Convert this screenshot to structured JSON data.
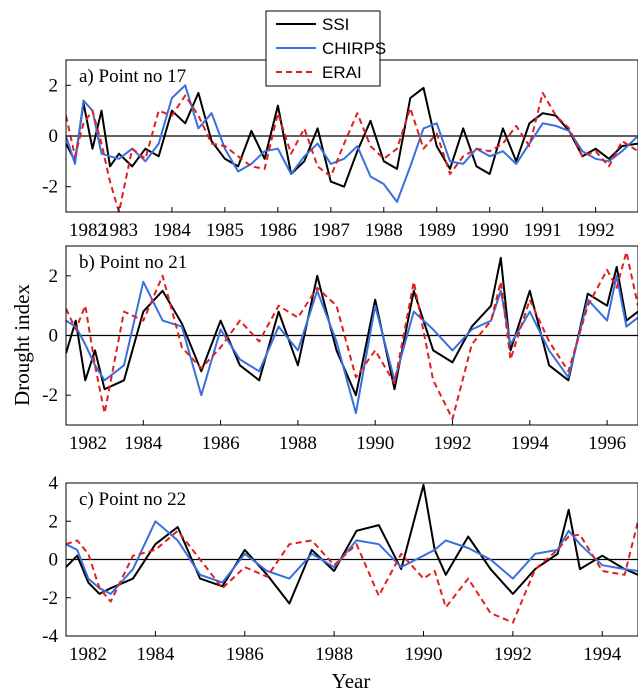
{
  "chart_data": [
    {
      "type": "line",
      "title": "a) Point no 17",
      "xlim": [
        1982,
        1992.8
      ],
      "ylim": [
        -3,
        3
      ],
      "yticks": [
        -2,
        0,
        2
      ],
      "xticks": [
        1982,
        1983,
        1984,
        1985,
        1986,
        1987,
        1988,
        1989,
        1990,
        1991,
        1992
      ],
      "legend": {
        "placement": "top-center",
        "entries": [
          "SSI",
          "CHIRPS",
          "ERAI"
        ]
      },
      "series": [
        {
          "name": "SSI",
          "color": "#000000",
          "style": "solid",
          "x": [
            1982.0,
            1982.17,
            1982.33,
            1982.5,
            1982.67,
            1982.83,
            1983.0,
            1983.25,
            1983.5,
            1983.75,
            1984.0,
            1984.25,
            1984.5,
            1984.75,
            1985.0,
            1985.25,
            1985.5,
            1985.75,
            1986.0,
            1986.25,
            1986.5,
            1986.75,
            1987.0,
            1987.25,
            1987.5,
            1987.75,
            1988.0,
            1988.25,
            1988.5,
            1988.75,
            1989.0,
            1989.25,
            1989.5,
            1989.75,
            1990.0,
            1990.25,
            1990.5,
            1990.75,
            1991.0,
            1991.25,
            1991.5,
            1991.75,
            1992.0,
            1992.25,
            1992.5,
            1992.8
          ],
          "y": [
            -0.3,
            -1.0,
            1.3,
            -0.5,
            1.0,
            -1.2,
            -0.7,
            -1.2,
            -0.5,
            -0.8,
            1.0,
            0.5,
            1.7,
            -0.2,
            -0.9,
            -1.2,
            0.2,
            -0.9,
            1.2,
            -1.5,
            -1.0,
            0.3,
            -1.8,
            -2.0,
            -0.6,
            0.6,
            -1.0,
            -1.3,
            1.5,
            1.9,
            -0.4,
            -1.3,
            0.3,
            -1.2,
            -1.5,
            0.3,
            -1.0,
            0.5,
            0.9,
            0.8,
            0.2,
            -0.8,
            -0.5,
            -0.9,
            -0.4,
            -0.3
          ]
        },
        {
          "name": "CHIRPS",
          "color": "#3a6fe0",
          "style": "solid",
          "x": [
            1982.0,
            1982.17,
            1982.33,
            1982.5,
            1982.67,
            1982.83,
            1983.0,
            1983.25,
            1983.5,
            1983.75,
            1984.0,
            1984.25,
            1984.5,
            1984.75,
            1985.0,
            1985.25,
            1985.5,
            1985.75,
            1986.0,
            1986.25,
            1986.5,
            1986.75,
            1987.0,
            1987.25,
            1987.5,
            1987.75,
            1988.0,
            1988.25,
            1988.5,
            1988.75,
            1989.0,
            1989.25,
            1989.5,
            1989.75,
            1990.0,
            1990.25,
            1990.5,
            1990.75,
            1991.0,
            1991.25,
            1991.5,
            1991.75,
            1992.0,
            1992.25,
            1992.5,
            1992.8
          ],
          "y": [
            0.0,
            -1.1,
            1.4,
            1.0,
            -0.7,
            -0.8,
            -0.9,
            -0.5,
            -1.0,
            -0.3,
            1.5,
            2.0,
            0.3,
            0.9,
            -0.5,
            -1.4,
            -1.1,
            -0.6,
            -0.5,
            -1.5,
            -0.8,
            -0.3,
            -1.1,
            -0.9,
            -0.4,
            -1.6,
            -1.9,
            -2.6,
            -1.2,
            0.3,
            0.5,
            -1.0,
            -1.1,
            -0.5,
            -0.8,
            -0.6,
            -1.1,
            -0.3,
            0.5,
            0.4,
            0.2,
            -0.6,
            -0.9,
            -1.0,
            -0.6,
            0.0
          ]
        },
        {
          "name": "ERAI",
          "color": "#e02020",
          "style": "dashed",
          "x": [
            1982.0,
            1982.17,
            1982.33,
            1982.5,
            1982.67,
            1982.83,
            1983.0,
            1983.25,
            1983.5,
            1983.75,
            1984.0,
            1984.25,
            1984.5,
            1984.75,
            1985.0,
            1985.25,
            1985.5,
            1985.75,
            1986.0,
            1986.25,
            1986.5,
            1986.75,
            1987.0,
            1987.25,
            1987.5,
            1987.75,
            1988.0,
            1988.25,
            1988.5,
            1988.75,
            1989.0,
            1989.25,
            1989.5,
            1989.75,
            1990.0,
            1990.25,
            1990.5,
            1990.75,
            1991.0,
            1991.25,
            1991.5,
            1991.75,
            1992.0,
            1992.25,
            1992.5,
            1992.8
          ],
          "y": [
            0.8,
            -0.8,
            0.5,
            1.0,
            -0.3,
            -1.8,
            -3.0,
            -0.5,
            -0.9,
            1.0,
            0.8,
            1.6,
            0.8,
            -0.3,
            -0.4,
            -0.8,
            -1.2,
            -1.3,
            0.9,
            -0.7,
            0.3,
            -1.2,
            -1.6,
            -0.3,
            0.9,
            -0.4,
            -0.9,
            -0.5,
            1.1,
            -0.5,
            0.1,
            -1.5,
            -0.8,
            -0.5,
            -0.6,
            -0.3,
            0.4,
            -0.4,
            1.7,
            0.8,
            0.3,
            -0.8,
            -0.6,
            -1.2,
            -0.2,
            -0.6
          ]
        }
      ]
    },
    {
      "type": "line",
      "title": "b) Point no 21",
      "ylabel": "Drought index",
      "xlim": [
        1982,
        1996.8
      ],
      "ylim": [
        -3,
        3
      ],
      "yticks": [
        -2,
        0,
        2
      ],
      "xticks": [
        1982,
        1984,
        1986,
        1988,
        1990,
        1992,
        1994,
        1996
      ],
      "series": [
        {
          "name": "SSI",
          "color": "#000000",
          "style": "solid",
          "x": [
            1982.0,
            1982.25,
            1982.5,
            1982.75,
            1983.0,
            1983.5,
            1984.0,
            1984.5,
            1985.0,
            1985.5,
            1986.0,
            1986.5,
            1987.0,
            1987.5,
            1988.0,
            1988.5,
            1989.0,
            1989.5,
            1990.0,
            1990.5,
            1991.0,
            1991.5,
            1992.0,
            1992.5,
            1993.0,
            1993.25,
            1993.5,
            1994.0,
            1994.5,
            1995.0,
            1995.5,
            1996.0,
            1996.25,
            1996.5,
            1996.8
          ],
          "y": [
            -0.6,
            0.5,
            -1.5,
            -0.5,
            -1.8,
            -1.5,
            0.8,
            1.5,
            0.4,
            -1.2,
            0.5,
            -1.0,
            -1.5,
            0.8,
            -1.0,
            2.0,
            -0.5,
            -2.0,
            1.2,
            -1.8,
            1.5,
            -0.5,
            -0.9,
            0.3,
            1.0,
            2.6,
            -0.5,
            1.5,
            -1.0,
            -1.5,
            1.4,
            1.0,
            2.3,
            0.5,
            0.8
          ]
        },
        {
          "name": "CHIRPS",
          "color": "#3a6fe0",
          "style": "solid",
          "x": [
            1982.0,
            1982.25,
            1982.5,
            1982.75,
            1983.0,
            1983.5,
            1984.0,
            1984.5,
            1985.0,
            1985.5,
            1986.0,
            1986.5,
            1987.0,
            1987.5,
            1988.0,
            1988.5,
            1989.0,
            1989.5,
            1990.0,
            1990.5,
            1991.0,
            1991.5,
            1992.0,
            1992.5,
            1993.0,
            1993.25,
            1993.5,
            1994.0,
            1994.5,
            1995.0,
            1995.5,
            1996.0,
            1996.25,
            1996.5,
            1996.8
          ],
          "y": [
            0.5,
            0.3,
            -0.3,
            -1.0,
            -1.5,
            -1.0,
            1.8,
            0.5,
            0.3,
            -2.0,
            0.2,
            -0.8,
            -1.2,
            0.3,
            -0.5,
            1.5,
            -0.2,
            -2.6,
            1.0,
            -1.5,
            0.8,
            0.2,
            -0.5,
            0.2,
            0.5,
            1.5,
            -0.3,
            0.8,
            -0.5,
            -1.4,
            1.2,
            0.5,
            2.0,
            0.3,
            0.6
          ]
        },
        {
          "name": "ERAI",
          "color": "#e02020",
          "style": "dashed",
          "x": [
            1982.0,
            1982.25,
            1982.5,
            1982.75,
            1983.0,
            1983.5,
            1984.0,
            1984.5,
            1985.0,
            1985.5,
            1986.0,
            1986.5,
            1987.0,
            1987.5,
            1988.0,
            1988.5,
            1989.0,
            1989.5,
            1990.0,
            1990.5,
            1991.0,
            1991.5,
            1992.0,
            1992.5,
            1993.0,
            1993.25,
            1993.5,
            1994.0,
            1994.5,
            1995.0,
            1995.5,
            1996.0,
            1996.25,
            1996.5,
            1996.8
          ],
          "y": [
            0.9,
            0.2,
            1.0,
            -1.0,
            -2.6,
            0.8,
            0.5,
            2.0,
            -0.4,
            -1.1,
            -0.4,
            0.5,
            -0.2,
            1.0,
            0.6,
            1.6,
            1.0,
            -1.4,
            -0.5,
            -1.6,
            1.8,
            -1.5,
            -2.8,
            -0.3,
            0.5,
            1.8,
            -0.8,
            1.2,
            -0.2,
            -1.2,
            1.0,
            2.2,
            1.6,
            2.8,
            1.0
          ]
        }
      ]
    },
    {
      "type": "line",
      "title": "c) Point no 22",
      "xlabel": "Year",
      "xlim": [
        1982,
        1994.8
      ],
      "ylim": [
        -4,
        4
      ],
      "yticks": [
        -4,
        -2,
        0,
        2,
        4
      ],
      "xticks": [
        1982,
        1984,
        1986,
        1988,
        1990,
        1992,
        1994
      ],
      "series": [
        {
          "name": "SSI",
          "color": "#000000",
          "style": "solid",
          "x": [
            1982.0,
            1982.25,
            1982.5,
            1982.75,
            1983.0,
            1983.5,
            1984.0,
            1984.5,
            1985.0,
            1985.5,
            1986.0,
            1986.5,
            1987.0,
            1987.5,
            1988.0,
            1988.5,
            1989.0,
            1989.5,
            1990.0,
            1990.25,
            1990.5,
            1991.0,
            1991.5,
            1992.0,
            1992.5,
            1993.0,
            1993.25,
            1993.5,
            1994.0,
            1994.5,
            1994.8
          ],
          "y": [
            -0.4,
            0.2,
            -1.2,
            -1.8,
            -1.5,
            -1.0,
            0.8,
            1.7,
            -1.0,
            -1.4,
            0.5,
            -0.8,
            -2.3,
            0.5,
            -0.6,
            1.5,
            1.8,
            -0.5,
            3.9,
            0.5,
            -0.8,
            1.2,
            -0.5,
            -1.8,
            -0.5,
            0.3,
            2.6,
            -0.5,
            0.2,
            -0.5,
            -0.8
          ]
        },
        {
          "name": "CHIRPS",
          "color": "#3a6fe0",
          "style": "solid",
          "x": [
            1982.0,
            1982.25,
            1982.5,
            1982.75,
            1983.0,
            1983.5,
            1984.0,
            1984.5,
            1985.0,
            1985.5,
            1986.0,
            1986.5,
            1987.0,
            1987.5,
            1988.0,
            1988.5,
            1989.0,
            1989.5,
            1990.0,
            1990.25,
            1990.5,
            1991.0,
            1991.5,
            1992.0,
            1992.5,
            1993.0,
            1993.25,
            1993.5,
            1994.0,
            1994.5,
            1994.8
          ],
          "y": [
            0.8,
            0.5,
            -1.0,
            -1.5,
            -1.8,
            -0.5,
            2.0,
            1.0,
            -0.8,
            -1.2,
            0.3,
            -0.6,
            -1.0,
            0.3,
            -0.4,
            1.0,
            0.8,
            -0.4,
            0.2,
            0.5,
            1.0,
            0.6,
            0.0,
            -1.0,
            0.3,
            0.5,
            1.5,
            0.8,
            -0.3,
            -0.5,
            -0.6
          ]
        },
        {
          "name": "ERAI",
          "color": "#e02020",
          "style": "dashed",
          "x": [
            1982.0,
            1982.25,
            1982.5,
            1982.75,
            1983.0,
            1983.5,
            1984.0,
            1984.5,
            1985.0,
            1985.5,
            1986.0,
            1986.5,
            1987.0,
            1987.5,
            1988.0,
            1988.5,
            1989.0,
            1989.5,
            1990.0,
            1990.25,
            1990.5,
            1991.0,
            1991.5,
            1992.0,
            1992.5,
            1993.0,
            1993.25,
            1993.5,
            1994.0,
            1994.5,
            1994.8
          ],
          "y": [
            0.8,
            1.0,
            0.3,
            -1.5,
            -2.2,
            0.2,
            0.5,
            1.5,
            0.0,
            -1.5,
            -0.4,
            -0.9,
            0.8,
            1.0,
            -0.3,
            0.8,
            -1.9,
            0.3,
            -1.0,
            -0.6,
            -2.5,
            -1.0,
            -2.8,
            -3.3,
            -0.5,
            0.5,
            1.2,
            1.3,
            -0.6,
            -0.8,
            2.0
          ]
        }
      ]
    }
  ]
}
